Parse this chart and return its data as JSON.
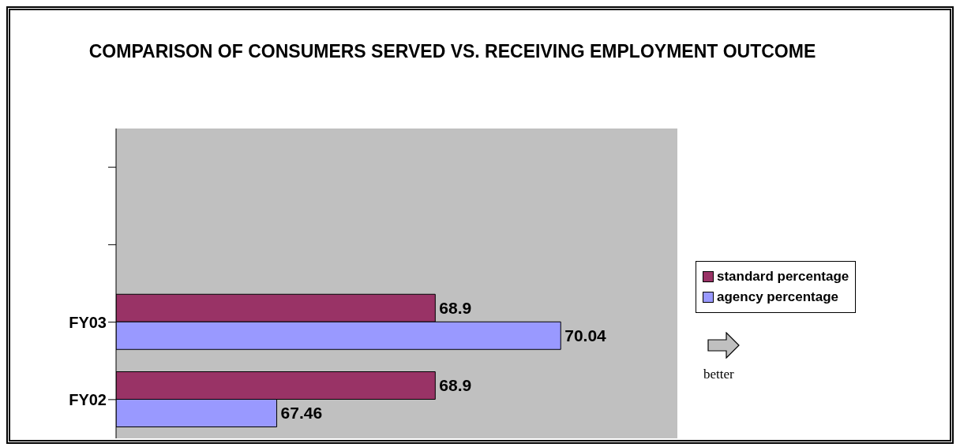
{
  "chart_data": {
    "type": "bar",
    "orientation": "horizontal",
    "title": "COMPARISON OF CONSUMERS SERVED VS. RECEIVING EMPLOYMENT OUTCOME",
    "categories": [
      null,
      null,
      "FY03",
      "FY02"
    ],
    "series": [
      {
        "name": "standard percentage",
        "color": "#993366",
        "values": [
          null,
          null,
          68.9,
          68.9
        ]
      },
      {
        "name": "agency percentage",
        "color": "#9999ff",
        "values": [
          null,
          null,
          70.04,
          67.46
        ]
      }
    ],
    "xlim": [
      66,
      71.1
    ],
    "tick_labels": "y",
    "data_labels": true,
    "legend": "right",
    "annotations": [
      "better"
    ]
  }
}
